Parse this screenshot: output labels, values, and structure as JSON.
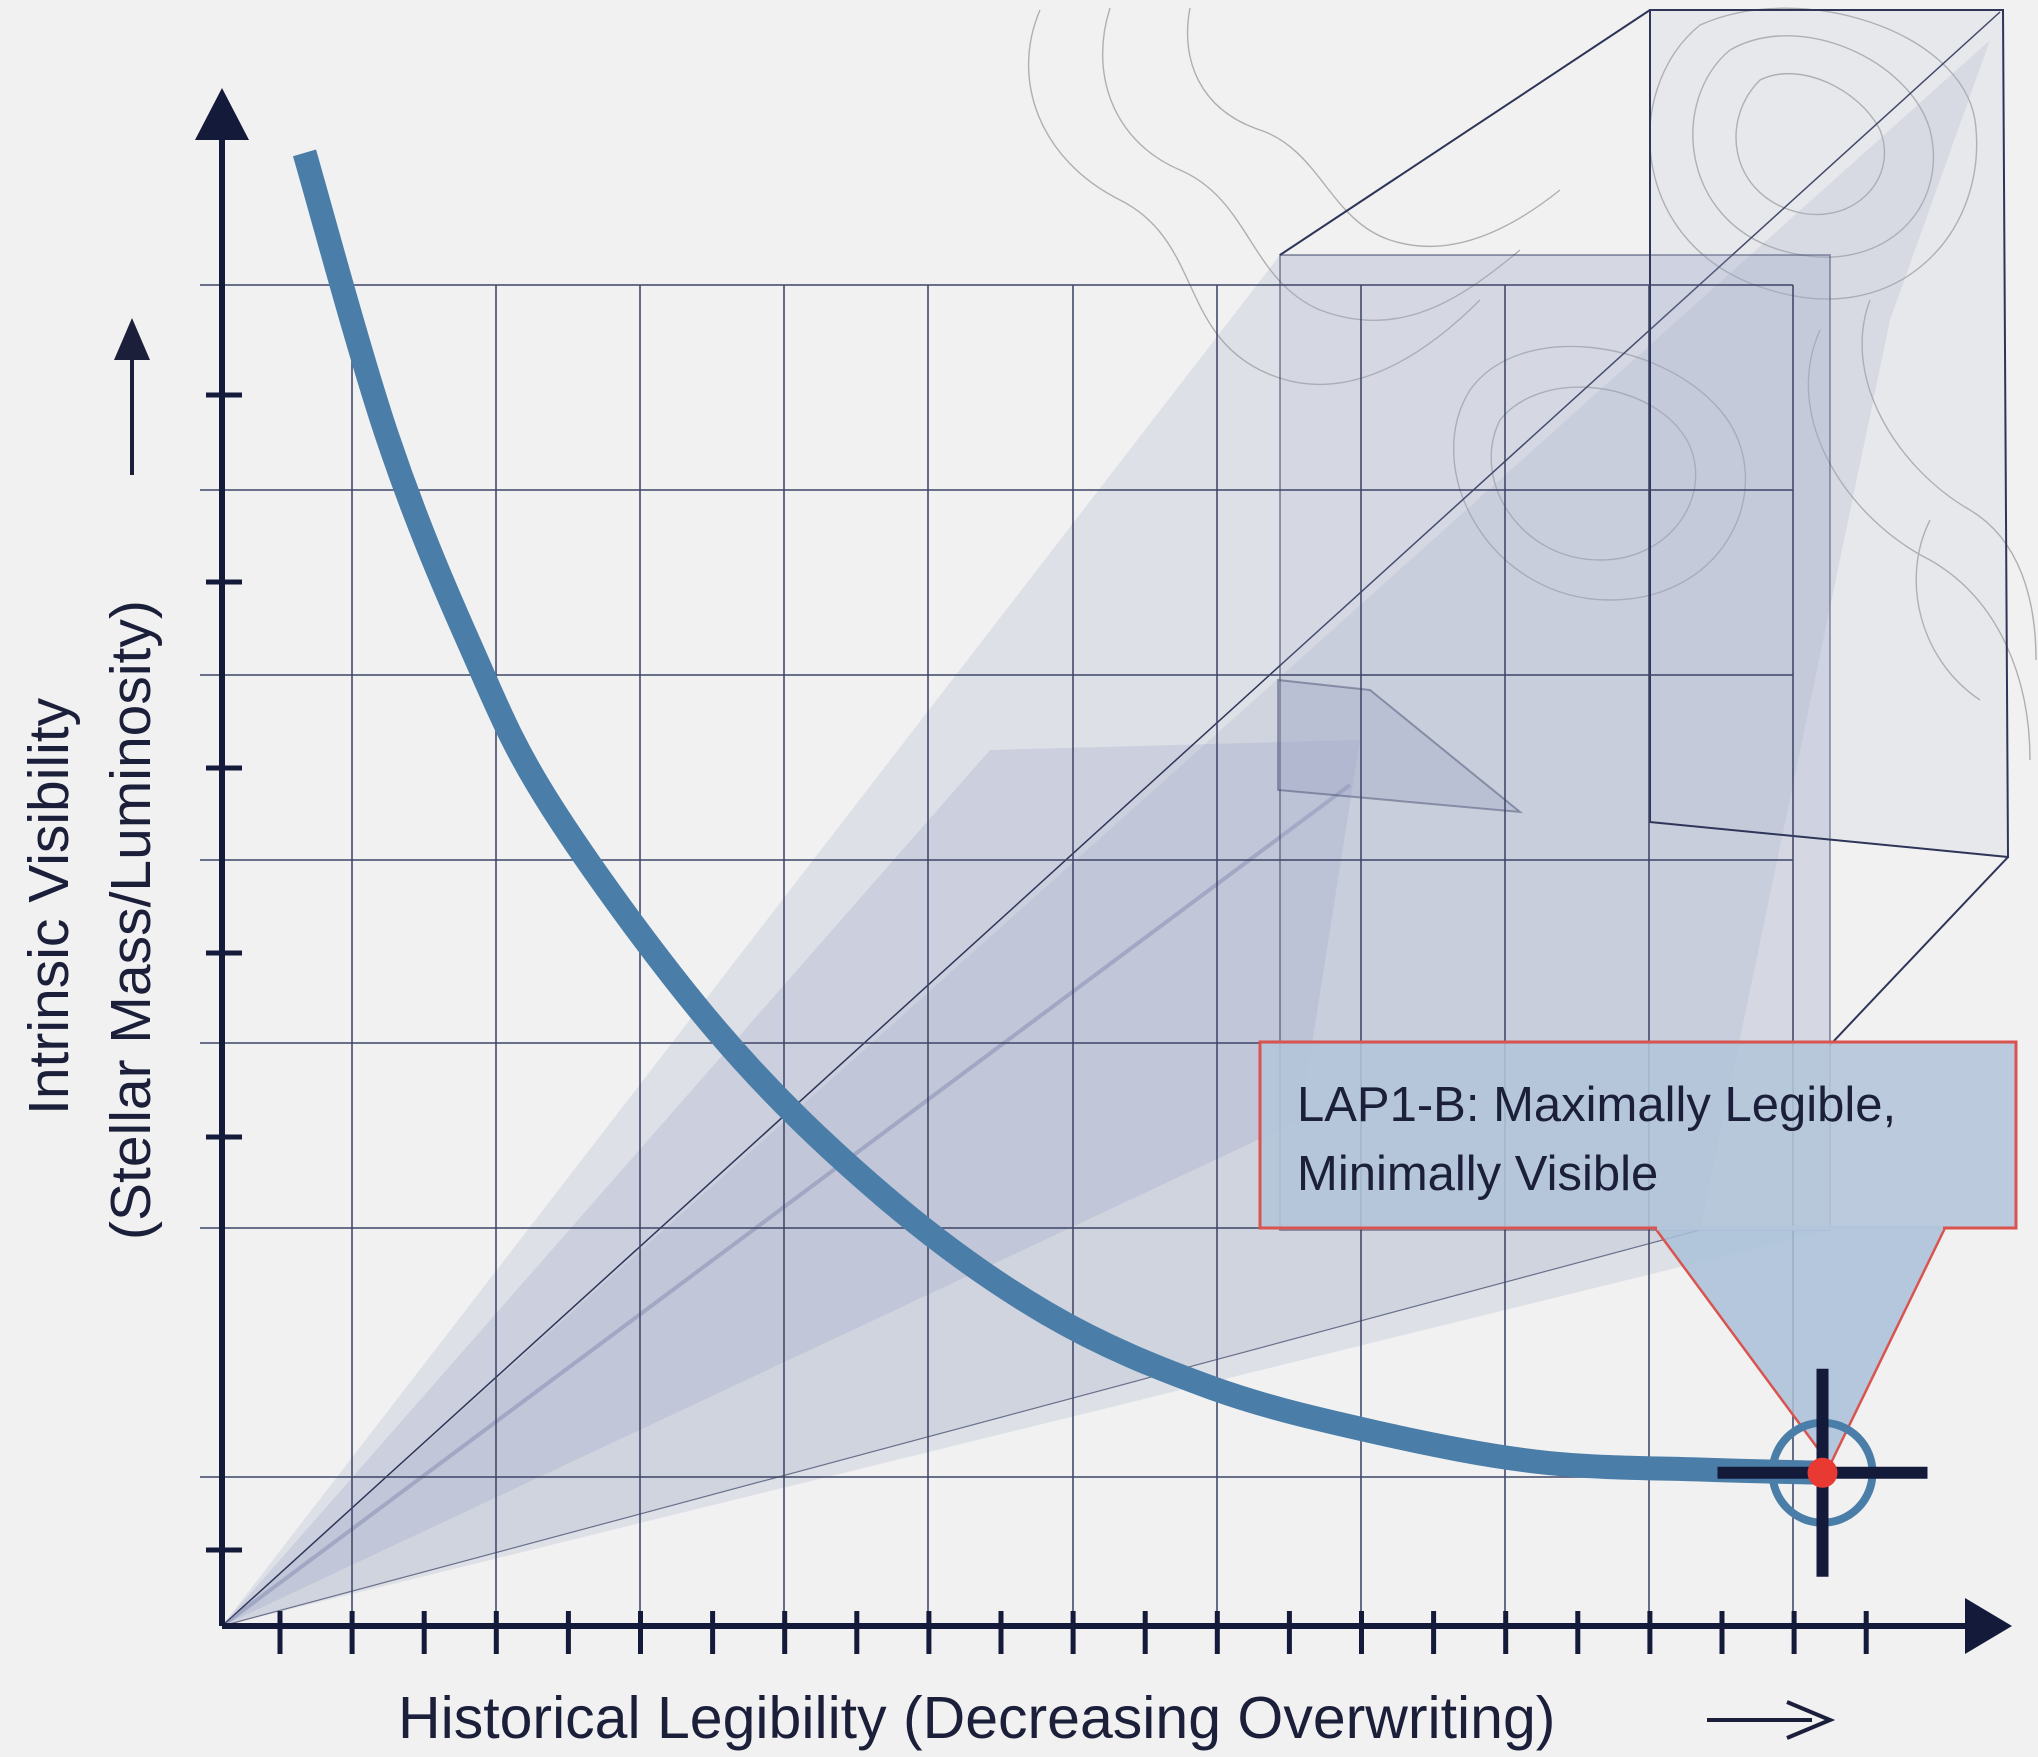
{
  "chart_data": {
    "type": "line",
    "title": "",
    "xlabel": "Historical Legibility (Decreasing Overwriting)",
    "ylabel_line1": "Intrinsic Visibility",
    "ylabel_line2": "(Stellar Mass/Luminosity)",
    "x_ticks": "unlabeled",
    "y_ticks": "unlabeled",
    "grid": true,
    "series": [
      {
        "values": [
          {
            "x": 0.05,
            "y": 0.99
          },
          {
            "x": 0.1,
            "y": 0.8
          },
          {
            "x": 0.15,
            "y": 0.66
          },
          {
            "x": 0.2,
            "y": 0.55
          },
          {
            "x": 0.3,
            "y": 0.4
          },
          {
            "x": 0.4,
            "y": 0.29
          },
          {
            "x": 0.5,
            "y": 0.21
          },
          {
            "x": 0.6,
            "y": 0.16
          },
          {
            "x": 0.7,
            "y": 0.13
          },
          {
            "x": 0.8,
            "y": 0.11
          },
          {
            "x": 0.9,
            "y": 0.105
          },
          {
            "x": 0.97,
            "y": 0.103
          }
        ]
      }
    ],
    "highlight": {
      "x": 0.97,
      "y": 0.103,
      "label": "LAP1-B: Maximally Legible, Minimally Visible"
    },
    "colors": {
      "curve": "#4a7ea8",
      "axes": "#131a3a",
      "grid": "#3d4466",
      "cone": "#9aa3c4",
      "callout_border": "#d9534f",
      "callout_fill": "#b3c5da",
      "marker": "#e83a32",
      "marker_ring": "#4a7ea8"
    }
  }
}
